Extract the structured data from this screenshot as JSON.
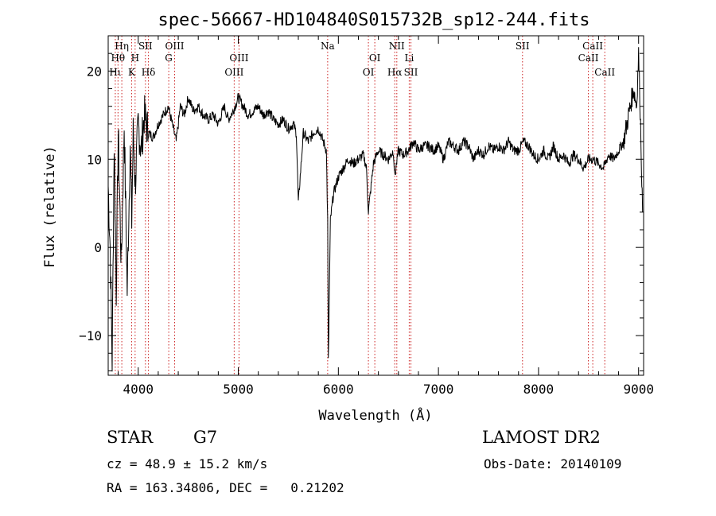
{
  "chart_data": {
    "type": "line",
    "title": "spec-56667-HD104840S015732B_sp12-244.fits",
    "xlabel": "Wavelength (Å)",
    "ylabel": "Flux (relative)",
    "xlim": [
      3700,
      9050
    ],
    "ylim": [
      -14.5,
      24
    ],
    "x_ticks": [
      4000,
      5000,
      6000,
      7000,
      8000,
      9000
    ],
    "y_ticks": [
      -10,
      0,
      10,
      20
    ],
    "x_tick_labels": [
      "4000",
      "5000",
      "6000",
      "7000",
      "8000",
      "9000"
    ],
    "y_tick_labels": [
      "−10",
      "0",
      "10",
      "20"
    ],
    "grid": false,
    "line_color": "#000000",
    "marker_color": "#cc2222",
    "series": [
      {
        "x": [
          3700,
          3720,
          3740,
          3760,
          3780,
          3800,
          3830,
          3860,
          3890,
          3920,
          3935,
          3950,
          3970,
          4000,
          4030,
          4060,
          4100,
          4150,
          4200,
          4250,
          4300,
          4340,
          4380,
          4420,
          4460,
          4500,
          4550,
          4600,
          4650,
          4700,
          4750,
          4800,
          4860,
          4900,
          4950,
          5000,
          5050,
          5100,
          5150,
          5200,
          5250,
          5300,
          5350,
          5400,
          5450,
          5500,
          5550,
          5580,
          5600,
          5650,
          5700,
          5750,
          5800,
          5850,
          5880,
          5893,
          5900,
          5920,
          5950,
          6000,
          6050,
          6100,
          6150,
          6200,
          6250,
          6280,
          6300,
          6350,
          6400,
          6450,
          6500,
          6550,
          6563,
          6600,
          6650,
          6700,
          6750,
          6800,
          6850,
          6900,
          6950,
          7000,
          7050,
          7100,
          7150,
          7200,
          7250,
          7300,
          7350,
          7400,
          7450,
          7500,
          7550,
          7600,
          7650,
          7700,
          7750,
          7800,
          7850,
          7900,
          7950,
          8000,
          8050,
          8100,
          8150,
          8200,
          8250,
          8300,
          8350,
          8400,
          8450,
          8500,
          8550,
          8600,
          8650,
          8700,
          8750,
          8800,
          8850,
          8900,
          8950,
          8980,
          9000,
          9020,
          9040
        ],
        "values": [
          7,
          0,
          -13,
          12,
          -5,
          13,
          -2,
          14,
          -5,
          12,
          3,
          13,
          7,
          14,
          11,
          15,
          13,
          12.5,
          14,
          15,
          16,
          14,
          12,
          16,
          15,
          17,
          15.5,
          16,
          15,
          14.5,
          15,
          14,
          16,
          14.5,
          15.5,
          17,
          16,
          15,
          15.5,
          16,
          15,
          15.5,
          14.5,
          14,
          14.5,
          13.5,
          14,
          13,
          5,
          13,
          12,
          13,
          13.5,
          12,
          11,
          3,
          -13,
          3,
          6,
          8,
          9,
          10,
          9.5,
          10,
          10.5,
          9,
          4,
          9.5,
          11,
          10.5,
          10,
          11,
          8,
          11,
          10.5,
          11,
          12,
          11,
          11.5,
          11.5,
          11,
          11.5,
          10,
          12,
          11.5,
          11,
          12,
          11.5,
          10,
          11,
          10.5,
          11.5,
          11,
          11.5,
          11,
          12,
          11,
          11,
          12,
          11.5,
          10.5,
          10,
          11,
          10,
          11.5,
          10,
          10.5,
          9.5,
          10.5,
          10,
          9,
          10,
          10,
          9.5,
          9,
          10.5,
          10,
          11,
          12,
          15,
          18,
          16,
          22,
          14,
          4
        ]
      }
    ],
    "line_markers": [
      {
        "label": "Hη",
        "wavelength": 3836,
        "row": 1
      },
      {
        "label": "Hθ",
        "wavelength": 3798,
        "row": 2
      },
      {
        "label": "Hι",
        "wavelength": 3771,
        "row": 3
      },
      {
        "label": "K",
        "wavelength": 3934,
        "row": 3
      },
      {
        "label": "H",
        "wavelength": 3969,
        "row": 2
      },
      {
        "label": "SII",
        "wavelength": 4072,
        "row": 1
      },
      {
        "label": "Hδ",
        "wavelength": 4102,
        "row": 3
      },
      {
        "label": "OIII",
        "wavelength": 4364,
        "row": 1
      },
      {
        "label": "G",
        "wavelength": 4305,
        "row": 2
      },
      {
        "label": "OIII",
        "wavelength": 5007,
        "row": 2
      },
      {
        "label": "OIII",
        "wavelength": 4959,
        "row": 3
      },
      {
        "label": "Na",
        "wavelength": 5893,
        "row": 1
      },
      {
        "label": "OI",
        "wavelength": 6364,
        "row": 2
      },
      {
        "label": "OI",
        "wavelength": 6300,
        "row": 3
      },
      {
        "label": "NII",
        "wavelength": 6584,
        "row": 1
      },
      {
        "label": "Li",
        "wavelength": 6708,
        "row": 2
      },
      {
        "label": "Hα",
        "wavelength": 6563,
        "row": 3
      },
      {
        "label": "SII",
        "wavelength": 6725,
        "row": 3
      },
      {
        "label": "SII",
        "wavelength": 7840,
        "row": 1
      },
      {
        "label": "CaII",
        "wavelength": 8542,
        "row": 1
      },
      {
        "label": "CaII",
        "wavelength": 8498,
        "row": 2
      },
      {
        "label": "CaII",
        "wavelength": 8662,
        "row": 3
      }
    ]
  },
  "info": {
    "class": "STAR",
    "subclass": "G7",
    "survey": "LAMOST DR2",
    "cz": "cz = 48.9 ± 15.2 km/s",
    "obs_date": "Obs-Date: 20140109",
    "coords": "RA = 163.34806, DEC =   0.21202"
  }
}
